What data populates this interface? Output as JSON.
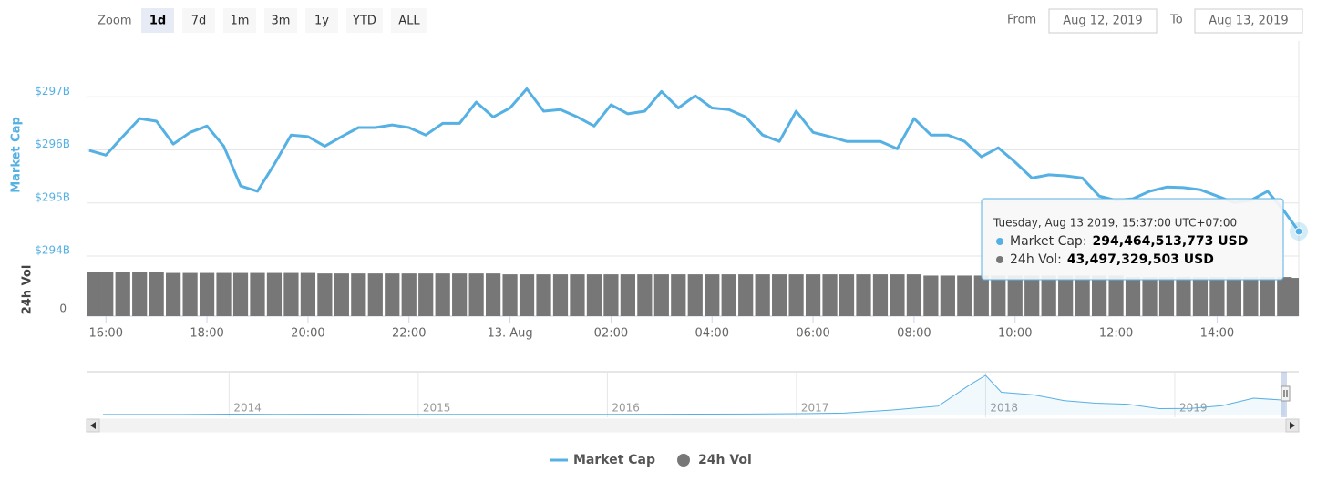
{
  "chart_data": {
    "type": "line",
    "zoom_label": "Zoom",
    "zoom_buttons": [
      "1d",
      "7d",
      "1m",
      "3m",
      "1y",
      "YTD",
      "ALL"
    ],
    "zoom_selected": "1d",
    "from_label": "From",
    "from_date": "Aug 12, 2019",
    "to_label": "To",
    "to_date": "Aug 13, 2019",
    "y_label": "Market Cap",
    "y3_label": "24h Vol",
    "ylim": [
      294,
      298
    ],
    "yticks": [
      {
        "value": 294,
        "label": "$294B"
      },
      {
        "value": 295,
        "label": "$295B"
      },
      {
        "value": 296,
        "label": "$296B"
      },
      {
        "value": 297,
        "label": "$297B"
      }
    ],
    "y3lim": [
      0,
      56
    ],
    "y3ticks": [
      0
    ],
    "grid": true,
    "xlim": [
      "2019-08-12 15:37",
      "2019-08-13 15:37"
    ],
    "xticks": [
      {
        "value": "2019-08-12 16:00",
        "label": "16:00"
      },
      {
        "value": "2019-08-12 18:00",
        "label": "18:00"
      },
      {
        "value": "2019-08-12 20:00",
        "label": "20:00"
      },
      {
        "value": "2019-08-12 22:00",
        "label": "22:00"
      },
      {
        "value": "2019-08-13 00:00",
        "label": "13. Aug"
      },
      {
        "value": "2019-08-13 02:00",
        "label": "02:00"
      },
      {
        "value": "2019-08-13 04:00",
        "label": "04:00"
      },
      {
        "value": "2019-08-13 06:00",
        "label": "06:00"
      },
      {
        "value": "2019-08-13 08:00",
        "label": "08:00"
      },
      {
        "value": "2019-08-13 10:00",
        "label": "10:00"
      },
      {
        "value": "2019-08-13 12:00",
        "label": "12:00"
      },
      {
        "value": "2019-08-13 14:00",
        "label": "14:00"
      }
    ],
    "x": [
      "2019-08-12 15:40",
      "2019-08-12 16:00",
      "2019-08-12 16:20",
      "2019-08-12 16:40",
      "2019-08-12 17:00",
      "2019-08-12 17:20",
      "2019-08-12 17:40",
      "2019-08-12 18:00",
      "2019-08-12 18:20",
      "2019-08-12 18:40",
      "2019-08-12 19:00",
      "2019-08-12 19:20",
      "2019-08-12 19:40",
      "2019-08-12 20:00",
      "2019-08-12 20:20",
      "2019-08-12 20:40",
      "2019-08-12 21:00",
      "2019-08-12 21:20",
      "2019-08-12 21:40",
      "2019-08-12 22:00",
      "2019-08-12 22:20",
      "2019-08-12 22:40",
      "2019-08-12 23:00",
      "2019-08-12 23:20",
      "2019-08-12 23:40",
      "2019-08-13 00:00",
      "2019-08-13 00:20",
      "2019-08-13 00:40",
      "2019-08-13 01:00",
      "2019-08-13 01:20",
      "2019-08-13 01:40",
      "2019-08-13 02:00",
      "2019-08-13 02:20",
      "2019-08-13 02:40",
      "2019-08-13 03:00",
      "2019-08-13 03:20",
      "2019-08-13 03:40",
      "2019-08-13 04:00",
      "2019-08-13 04:20",
      "2019-08-13 04:40",
      "2019-08-13 05:00",
      "2019-08-13 05:20",
      "2019-08-13 05:40",
      "2019-08-13 06:00",
      "2019-08-13 06:20",
      "2019-08-13 06:40",
      "2019-08-13 07:00",
      "2019-08-13 07:20",
      "2019-08-13 07:40",
      "2019-08-13 08:00",
      "2019-08-13 08:20",
      "2019-08-13 08:40",
      "2019-08-13 09:00",
      "2019-08-13 09:20",
      "2019-08-13 09:40",
      "2019-08-13 10:00",
      "2019-08-13 10:20",
      "2019-08-13 10:40",
      "2019-08-13 11:00",
      "2019-08-13 11:20",
      "2019-08-13 11:40",
      "2019-08-13 12:00",
      "2019-08-13 12:20",
      "2019-08-13 12:40",
      "2019-08-13 13:00",
      "2019-08-13 13:20",
      "2019-08-13 13:40",
      "2019-08-13 14:00",
      "2019-08-13 14:20",
      "2019-08-13 14:40",
      "2019-08-13 15:00",
      "2019-08-13 15:20",
      "2019-08-13 15:37"
    ],
    "series": [
      {
        "name": "Market Cap",
        "color": "#55b0e3",
        "axis": "y",
        "values": [
          295.99,
          295.9,
          296.25,
          296.59,
          296.54,
          296.11,
          296.33,
          296.45,
          296.07,
          295.32,
          295.22,
          295.73,
          296.28,
          296.25,
          296.07,
          296.25,
          296.42,
          296.42,
          296.47,
          296.42,
          296.28,
          296.5,
          296.5,
          296.9,
          296.62,
          296.79,
          297.15,
          296.73,
          296.76,
          296.62,
          296.45,
          296.85,
          296.68,
          296.73,
          297.1,
          296.79,
          297.02,
          296.79,
          296.76,
          296.62,
          296.28,
          296.16,
          296.73,
          296.33,
          296.25,
          296.16,
          296.16,
          296.16,
          296.02,
          296.59,
          296.28,
          296.28,
          296.16,
          295.87,
          296.04,
          295.77,
          295.47,
          295.53,
          295.51,
          295.47,
          295.13,
          295.05,
          295.08,
          295.22,
          295.3,
          295.29,
          295.25,
          295.13,
          295.01,
          295.05,
          295.22,
          294.84,
          294.464513773
        ]
      },
      {
        "name": "24h Vol",
        "color": "#777777",
        "axis": "y3",
        "values": [
          49.8,
          49.8,
          49.8,
          49.8,
          49.8,
          49.2,
          49.2,
          49.2,
          49.2,
          49.2,
          49.2,
          49.2,
          49.2,
          49.2,
          48.6,
          48.6,
          48.6,
          48.6,
          48.6,
          48.6,
          48.6,
          48.6,
          48.6,
          48.6,
          48.6,
          47.6,
          47.6,
          47.6,
          47.6,
          47.6,
          47.6,
          47.6,
          47.6,
          47.6,
          47.6,
          47.6,
          47.6,
          47.6,
          47.6,
          47.6,
          47.6,
          47.6,
          47.6,
          47.6,
          47.6,
          47.6,
          47.6,
          47.6,
          47.6,
          47.6,
          46.2,
          46.2,
          46.2,
          46.2,
          46.2,
          46.2,
          46.2,
          46.2,
          46.2,
          46.2,
          46.2,
          46.2,
          44.5,
          44.5,
          44.5,
          44.5,
          44.5,
          44.5,
          44.5,
          44.5,
          44.5,
          44.5,
          43.497329503
        ]
      }
    ],
    "tooltip": {
      "date": "Tuesday, Aug 13 2019, 15:37:00 UTC+07:00",
      "items": [
        {
          "label": "Market Cap:",
          "value": "294,464,513,773 USD"
        },
        {
          "label": "24h Vol:",
          "value": "43,497,329,503 USD"
        }
      ]
    },
    "navigator": {
      "xlim": [
        "2013-05",
        "2019-08"
      ],
      "xticks": [
        {
          "value": "2014-01",
          "label": "2014"
        },
        {
          "value": "2015-01",
          "label": "2015"
        },
        {
          "value": "2016-01",
          "label": "2016"
        },
        {
          "value": "2017-01",
          "label": "2017"
        },
        {
          "value": "2018-01",
          "label": "2018"
        },
        {
          "value": "2019-01",
          "label": "2019"
        }
      ],
      "x": [
        "2013-05",
        "2013-10",
        "2014-01",
        "2014-04",
        "2014-07",
        "2014-10",
        "2015-01",
        "2015-04",
        "2015-07",
        "2015-10",
        "2016-01",
        "2016-04",
        "2016-07",
        "2016-10",
        "2017-01",
        "2017-04",
        "2017-07",
        "2017-10",
        "2017-12",
        "2018-01",
        "2018-02",
        "2018-04",
        "2018-06",
        "2018-08",
        "2018-10",
        "2018-12",
        "2019-02",
        "2019-04",
        "2019-06",
        "2019-08"
      ],
      "values": [
        1,
        2,
        10,
        6,
        8,
        5,
        4,
        4,
        4,
        4,
        6,
        7,
        10,
        11,
        18,
        30,
        90,
        170,
        600,
        790,
        450,
        400,
        280,
        230,
        210,
        120,
        125,
        180,
        330,
        290
      ]
    }
  }
}
